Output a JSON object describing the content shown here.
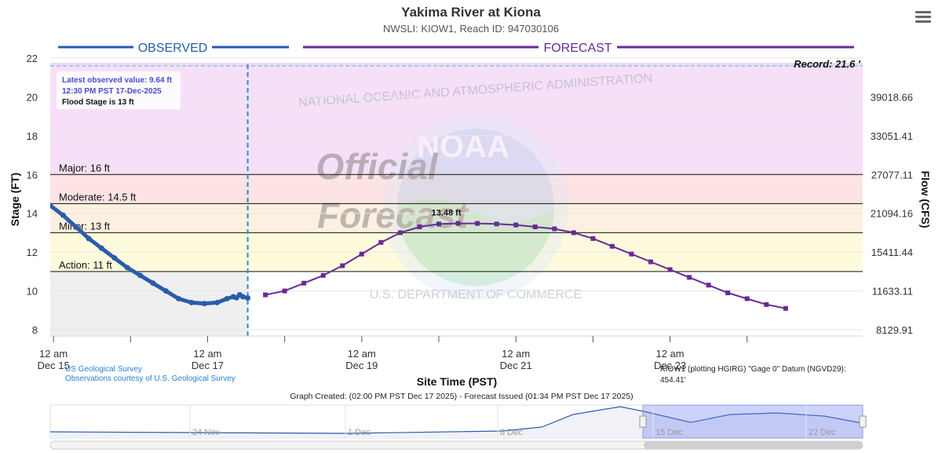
{
  "header": {
    "title": "Yakima River at Kiona",
    "subtitle": "NWSLI: KIOW1, Reach ID: 947030106"
  },
  "menu_icon": "hamburger-icon",
  "sections": {
    "observed": "OBSERVED",
    "forecast": "FORECAST"
  },
  "record_label": "Record: 21.6 '",
  "info_box": {
    "line1": "Latest observed value: 9.64 ft",
    "line2": "12:30 PM PST 17-Dec-2025",
    "line3": "Flood Stage is 13 ft"
  },
  "watermark": {
    "word1": "Official",
    "word2": "Forecast",
    "agency": "NATIONAL OCEANIC AND ATMOSPHERIC ADMINISTRATION",
    "dept": "U.S. DEPARTMENT OF COMMERCE",
    "logo": "NOAA"
  },
  "credits": {
    "line1": "US Geological Survey",
    "line2": "Observations courtesy of U.S. Geological Survey"
  },
  "datum_note": {
    "line1": "KIOW1 (plotting HGIRG) \"Gage 0\" Datum (NGVD29):",
    "line2": "454.41'"
  },
  "graph_created": "Graph Created: (02:00 PM PST Dec 17 2025) - Forecast Issued (01:34 PM PST Dec 17 2025)",
  "navigator": {
    "labels": [
      "24 Nov",
      "1 Dec",
      "8 Dec",
      "15 Dec",
      "22 Dec"
    ]
  },
  "colors": {
    "observed": "#2a5cab",
    "forecast": "#6a2a95",
    "record_band": "#f2d9f4",
    "major_band": "#f6e0f7",
    "moderate_band": "#fde3e3",
    "minor_band": "#fdf0e0",
    "action_band": "#fdfbdc",
    "below_band": "#efefef",
    "separator": "#2b8ad1"
  },
  "chart_data": {
    "type": "line",
    "title": "Yakima River at Kiona",
    "subtitle": "NWSLI: KIOW1, Reach ID: 947030106",
    "xlabel": "Site Time (PST)",
    "ylabel": "Stage (FT)",
    "y2label": "Flow (CFS)",
    "ylim": [
      8,
      22
    ],
    "yticks": [
      8,
      10,
      12,
      14,
      16,
      18,
      20,
      22
    ],
    "y2ticks": [
      "8129.91",
      "11633.11",
      "15411.44",
      "21094.16",
      "27077.11",
      "33051.41",
      "39018.66"
    ],
    "xlim": [
      "2025-12-14T23:00",
      "2025-12-25T12:00"
    ],
    "xticks": [
      {
        "t": "2025-12-15T00:00",
        "line1": "12 am",
        "line2": "Dec 15"
      },
      {
        "t": "2025-12-17T00:00",
        "line1": "12 am",
        "line2": "Dec 17"
      },
      {
        "t": "2025-12-19T00:00",
        "line1": "12 am",
        "line2": "Dec 19"
      },
      {
        "t": "2025-12-21T00:00",
        "line1": "12 am",
        "line2": "Dec 21"
      },
      {
        "t": "2025-12-23T00:00",
        "line1": "12 am",
        "line2": "Dec 23"
      }
    ],
    "minor_xticks": [
      "2025-12-16T00:00",
      "2025-12-18T00:00",
      "2025-12-20T00:00",
      "2025-12-22T00:00",
      "2025-12-24T00:00"
    ],
    "now": "2025-12-17T12:30",
    "record_stage": 21.6,
    "thresholds": [
      {
        "name": "Major: 16 ft",
        "value": 16
      },
      {
        "name": "Moderate: 14.5 ft",
        "value": 14.5
      },
      {
        "name": "Minor: 13 ft",
        "value": 13
      },
      {
        "name": "Action: 11 ft",
        "value": 11
      }
    ],
    "peak_label": "13.48 ft",
    "series": [
      {
        "name": "Observed",
        "points": [
          [
            "2025-12-14T23:00",
            14.4
          ],
          [
            "2025-12-15T03:00",
            13.9
          ],
          [
            "2025-12-15T07:00",
            13.3
          ],
          [
            "2025-12-15T11:00",
            12.7
          ],
          [
            "2025-12-15T15:00",
            12.2
          ],
          [
            "2025-12-15T19:00",
            11.7
          ],
          [
            "2025-12-15T23:00",
            11.2
          ],
          [
            "2025-12-16T03:00",
            10.8
          ],
          [
            "2025-12-16T07:00",
            10.4
          ],
          [
            "2025-12-16T11:00",
            10.0
          ],
          [
            "2025-12-16T15:00",
            9.6
          ],
          [
            "2025-12-16T19:00",
            9.4
          ],
          [
            "2025-12-16T23:00",
            9.35
          ],
          [
            "2025-12-17T03:00",
            9.4
          ],
          [
            "2025-12-17T06:00",
            9.6
          ],
          [
            "2025-12-17T08:00",
            9.7
          ],
          [
            "2025-12-17T09:00",
            9.65
          ],
          [
            "2025-12-17T10:00",
            9.8
          ],
          [
            "2025-12-17T11:00",
            9.7
          ],
          [
            "2025-12-17T12:30",
            9.64
          ]
        ]
      },
      {
        "name": "Forecast",
        "points": [
          [
            "2025-12-17T18:00",
            9.8
          ],
          [
            "2025-12-18T00:00",
            10.0
          ],
          [
            "2025-12-18T06:00",
            10.4
          ],
          [
            "2025-12-18T12:00",
            10.8
          ],
          [
            "2025-12-18T18:00",
            11.3
          ],
          [
            "2025-12-19T00:00",
            11.9
          ],
          [
            "2025-12-19T06:00",
            12.5
          ],
          [
            "2025-12-19T12:00",
            13.0
          ],
          [
            "2025-12-19T18:00",
            13.3
          ],
          [
            "2025-12-20T00:00",
            13.45
          ],
          [
            "2025-12-20T06:00",
            13.48
          ],
          [
            "2025-12-20T12:00",
            13.48
          ],
          [
            "2025-12-20T18:00",
            13.45
          ],
          [
            "2025-12-21T00:00",
            13.4
          ],
          [
            "2025-12-21T06:00",
            13.3
          ],
          [
            "2025-12-21T12:00",
            13.2
          ],
          [
            "2025-12-21T18:00",
            13.0
          ],
          [
            "2025-12-22T00:00",
            12.7
          ],
          [
            "2025-12-22T06:00",
            12.3
          ],
          [
            "2025-12-22T12:00",
            11.9
          ],
          [
            "2025-12-22T18:00",
            11.5
          ],
          [
            "2025-12-23T00:00",
            11.1
          ],
          [
            "2025-12-23T06:00",
            10.7
          ],
          [
            "2025-12-23T12:00",
            10.3
          ],
          [
            "2025-12-23T18:00",
            9.9
          ],
          [
            "2025-12-24T00:00",
            9.6
          ],
          [
            "2025-12-24T06:00",
            9.3
          ],
          [
            "2025-12-24T12:00",
            9.1
          ]
        ]
      }
    ]
  }
}
